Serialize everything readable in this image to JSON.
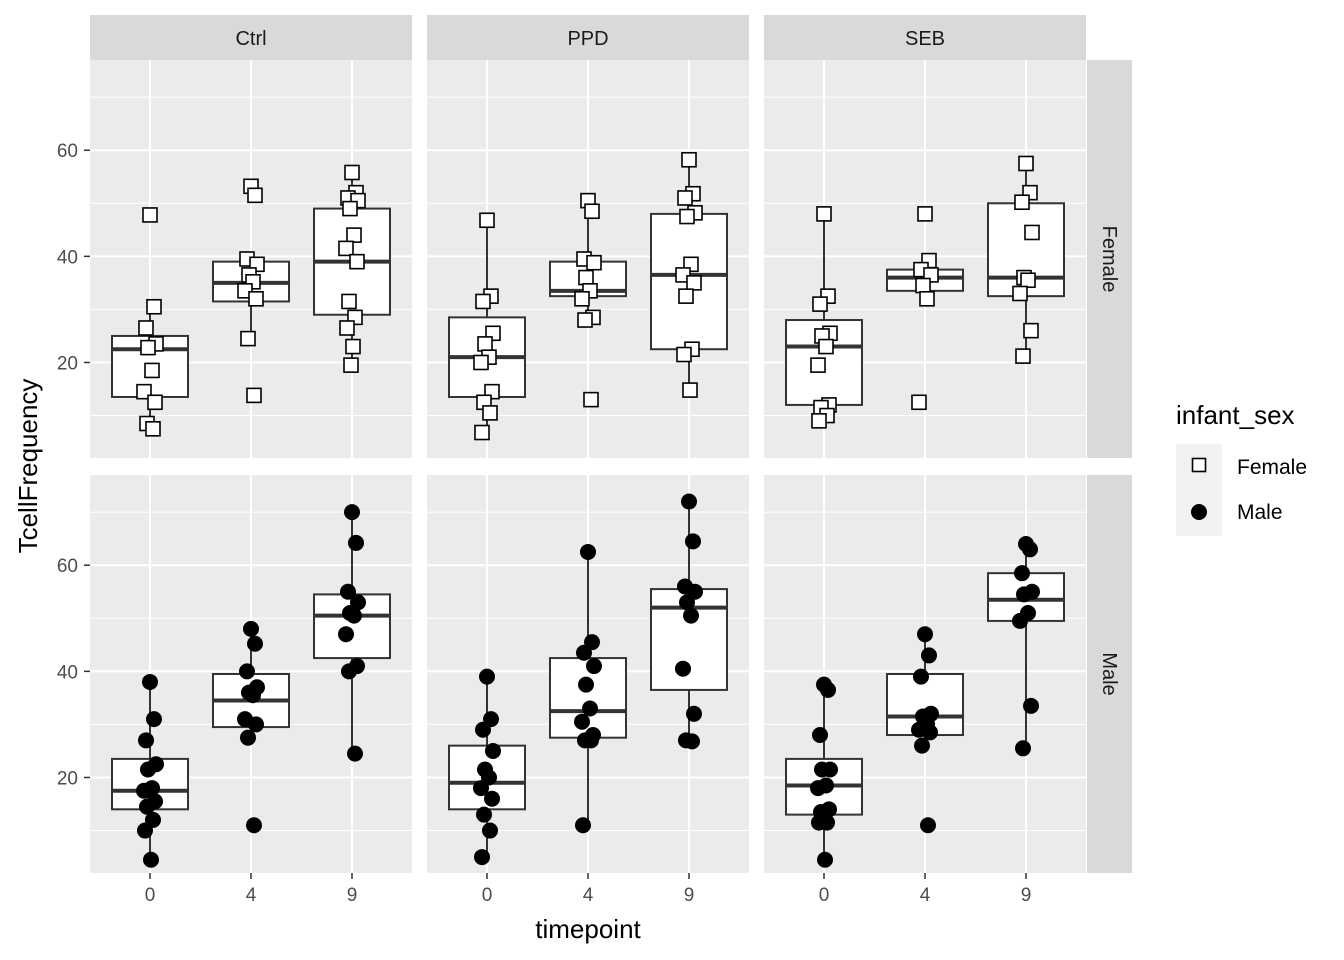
{
  "chart_data": {
    "type": "boxplot",
    "facet_columns": [
      "Ctrl",
      "PPD",
      "SEB"
    ],
    "facet_rows": [
      "Female",
      "Male"
    ],
    "categories": [
      "0",
      "4",
      "9"
    ],
    "xlabel": "timepoint",
    "ylabel": "TcellFrequency",
    "ylim": [
      2,
      77
    ],
    "yticks": [
      20,
      40,
      60
    ],
    "legend": {
      "title": "infant_sex",
      "position": "right",
      "entries": [
        {
          "label": "Female",
          "shape": "open-square"
        },
        {
          "label": "Male",
          "shape": "filled-circle"
        }
      ]
    },
    "panels": [
      {
        "column": "Ctrl",
        "row": "Female",
        "groups": [
          {
            "x": "0",
            "q1": 13.5,
            "median": 22.5,
            "q3": 25,
            "whisker_low": 7,
            "whisker_high": 30,
            "points": [
              47.8,
              30.5,
              26.5,
              23.5,
              22.8,
              18.5,
              14.5,
              12.5,
              8.5,
              7.5
            ]
          },
          {
            "x": "4",
            "q1": 31.5,
            "median": 35,
            "q3": 39,
            "whisker_low": 24,
            "whisker_high": 40,
            "points": [
              53.2,
              51.5,
              39.5,
              38.5,
              36.5,
              35.2,
              33.5,
              32,
              24.5,
              13.8
            ]
          },
          {
            "x": "9",
            "q1": 29,
            "median": 39,
            "q3": 49,
            "whisker_low": 19.5,
            "whisker_high": 56,
            "points": [
              55.8,
              52,
              51,
              50.5,
              49,
              44,
              41.5,
              39,
              31.5,
              28.5,
              26.5,
              23,
              19.5
            ]
          }
        ]
      },
      {
        "column": "PPD",
        "row": "Female",
        "groups": [
          {
            "x": "0",
            "q1": 13.5,
            "median": 21,
            "q3": 28.5,
            "whisker_low": 6.5,
            "whisker_high": 47,
            "points": [
              46.8,
              32.5,
              31.5,
              25.5,
              23.5,
              21,
              20,
              14.5,
              12.5,
              10.5,
              6.8
            ]
          },
          {
            "x": "4",
            "q1": 32.5,
            "median": 33.5,
            "q3": 39,
            "whisker_low": 28,
            "whisker_high": 50.5,
            "points": [
              50.5,
              48.5,
              39.5,
              38.8,
              36,
              33.5,
              32,
              28.5,
              28,
              13
            ]
          },
          {
            "x": "9",
            "q1": 22.5,
            "median": 36.5,
            "q3": 48,
            "whisker_low": 14.5,
            "whisker_high": 58,
            "points": [
              58.2,
              51.8,
              51,
              48.2,
              47.5,
              38.5,
              36.5,
              35,
              32.5,
              22.5,
              21.5,
              14.8
            ]
          }
        ]
      },
      {
        "column": "SEB",
        "row": "Female",
        "groups": [
          {
            "x": "0",
            "q1": 12,
            "median": 23,
            "q3": 28,
            "whisker_low": 8.5,
            "whisker_high": 48,
            "points": [
              48,
              32.5,
              31,
              25.5,
              25,
              23,
              19.5,
              12,
              11.5,
              10,
              9
            ]
          },
          {
            "x": "4",
            "q1": 33.5,
            "median": 36,
            "q3": 37.5,
            "whisker_low": 32,
            "whisker_high": 39,
            "points": [
              48,
              39.2,
              37.5,
              36.5,
              34.5,
              32,
              12.5
            ]
          },
          {
            "x": "9",
            "q1": 32.5,
            "median": 36,
            "q3": 50,
            "whisker_low": 21,
            "whisker_high": 57.5,
            "points": [
              57.5,
              52,
              50.2,
              44.5,
              36,
              35.5,
              33,
              26,
              21.2
            ]
          }
        ]
      },
      {
        "column": "Ctrl",
        "row": "Male",
        "groups": [
          {
            "x": "0",
            "q1": 14,
            "median": 17.5,
            "q3": 23.5,
            "whisker_low": 4.5,
            "whisker_high": 38,
            "points": [
              38,
              31,
              27,
              22.5,
              21.5,
              18,
              17.5,
              15.5,
              14.5,
              12,
              10,
              4.5
            ]
          },
          {
            "x": "4",
            "q1": 29.5,
            "median": 34.5,
            "q3": 39.5,
            "whisker_low": 27.5,
            "whisker_high": 48,
            "points": [
              48,
              45.2,
              40,
              37,
              36,
              35.5,
              31,
              30,
              27.5,
              11
            ]
          },
          {
            "x": "9",
            "q1": 42.5,
            "median": 50.5,
            "q3": 54.5,
            "whisker_low": 24.5,
            "whisker_high": 70,
            "points": [
              70,
              64.2,
              55,
              53,
              51,
              50.5,
              47,
              41,
              40,
              24.5
            ]
          }
        ]
      },
      {
        "column": "PPD",
        "row": "Male",
        "groups": [
          {
            "x": "0",
            "q1": 14,
            "median": 19,
            "q3": 26,
            "whisker_low": 5,
            "whisker_high": 39,
            "points": [
              39,
              31,
              29,
              25,
              21.5,
              20,
              18,
              16,
              13,
              10,
              5
            ]
          },
          {
            "x": "4",
            "q1": 27.5,
            "median": 32.5,
            "q3": 42.5,
            "whisker_low": 11,
            "whisker_high": 62.5,
            "points": [
              62.5,
              45.5,
              43.5,
              41,
              37.5,
              33,
              30.5,
              28,
              27,
              27,
              11
            ]
          },
          {
            "x": "9",
            "q1": 36.5,
            "median": 52,
            "q3": 55.5,
            "whisker_low": 27,
            "whisker_high": 72,
            "points": [
              72,
              64.5,
              56,
              55,
              53,
              50.5,
              40.5,
              32,
              27,
              26.8
            ]
          }
        ]
      },
      {
        "column": "SEB",
        "row": "Male",
        "groups": [
          {
            "x": "0",
            "q1": 13,
            "median": 18.5,
            "q3": 23.5,
            "whisker_low": 4.5,
            "whisker_high": 37.5,
            "points": [
              37.5,
              36.5,
              28,
              21.5,
              21.5,
              18.5,
              18,
              14,
              13.5,
              11.5,
              11.5,
              4.5
            ]
          },
          {
            "x": "4",
            "q1": 28,
            "median": 31.5,
            "q3": 39.5,
            "whisker_low": 26,
            "whisker_high": 47,
            "points": [
              47,
              43,
              39,
              32,
              31.5,
              30,
              29,
              28.5,
              26,
              11
            ]
          },
          {
            "x": "9",
            "q1": 49.5,
            "median": 53.5,
            "q3": 58.5,
            "whisker_low": 25.5,
            "whisker_high": 64,
            "points": [
              64,
              63,
              58.5,
              55,
              54.5,
              51,
              49.5,
              33.5,
              25.5
            ]
          }
        ]
      }
    ]
  }
}
